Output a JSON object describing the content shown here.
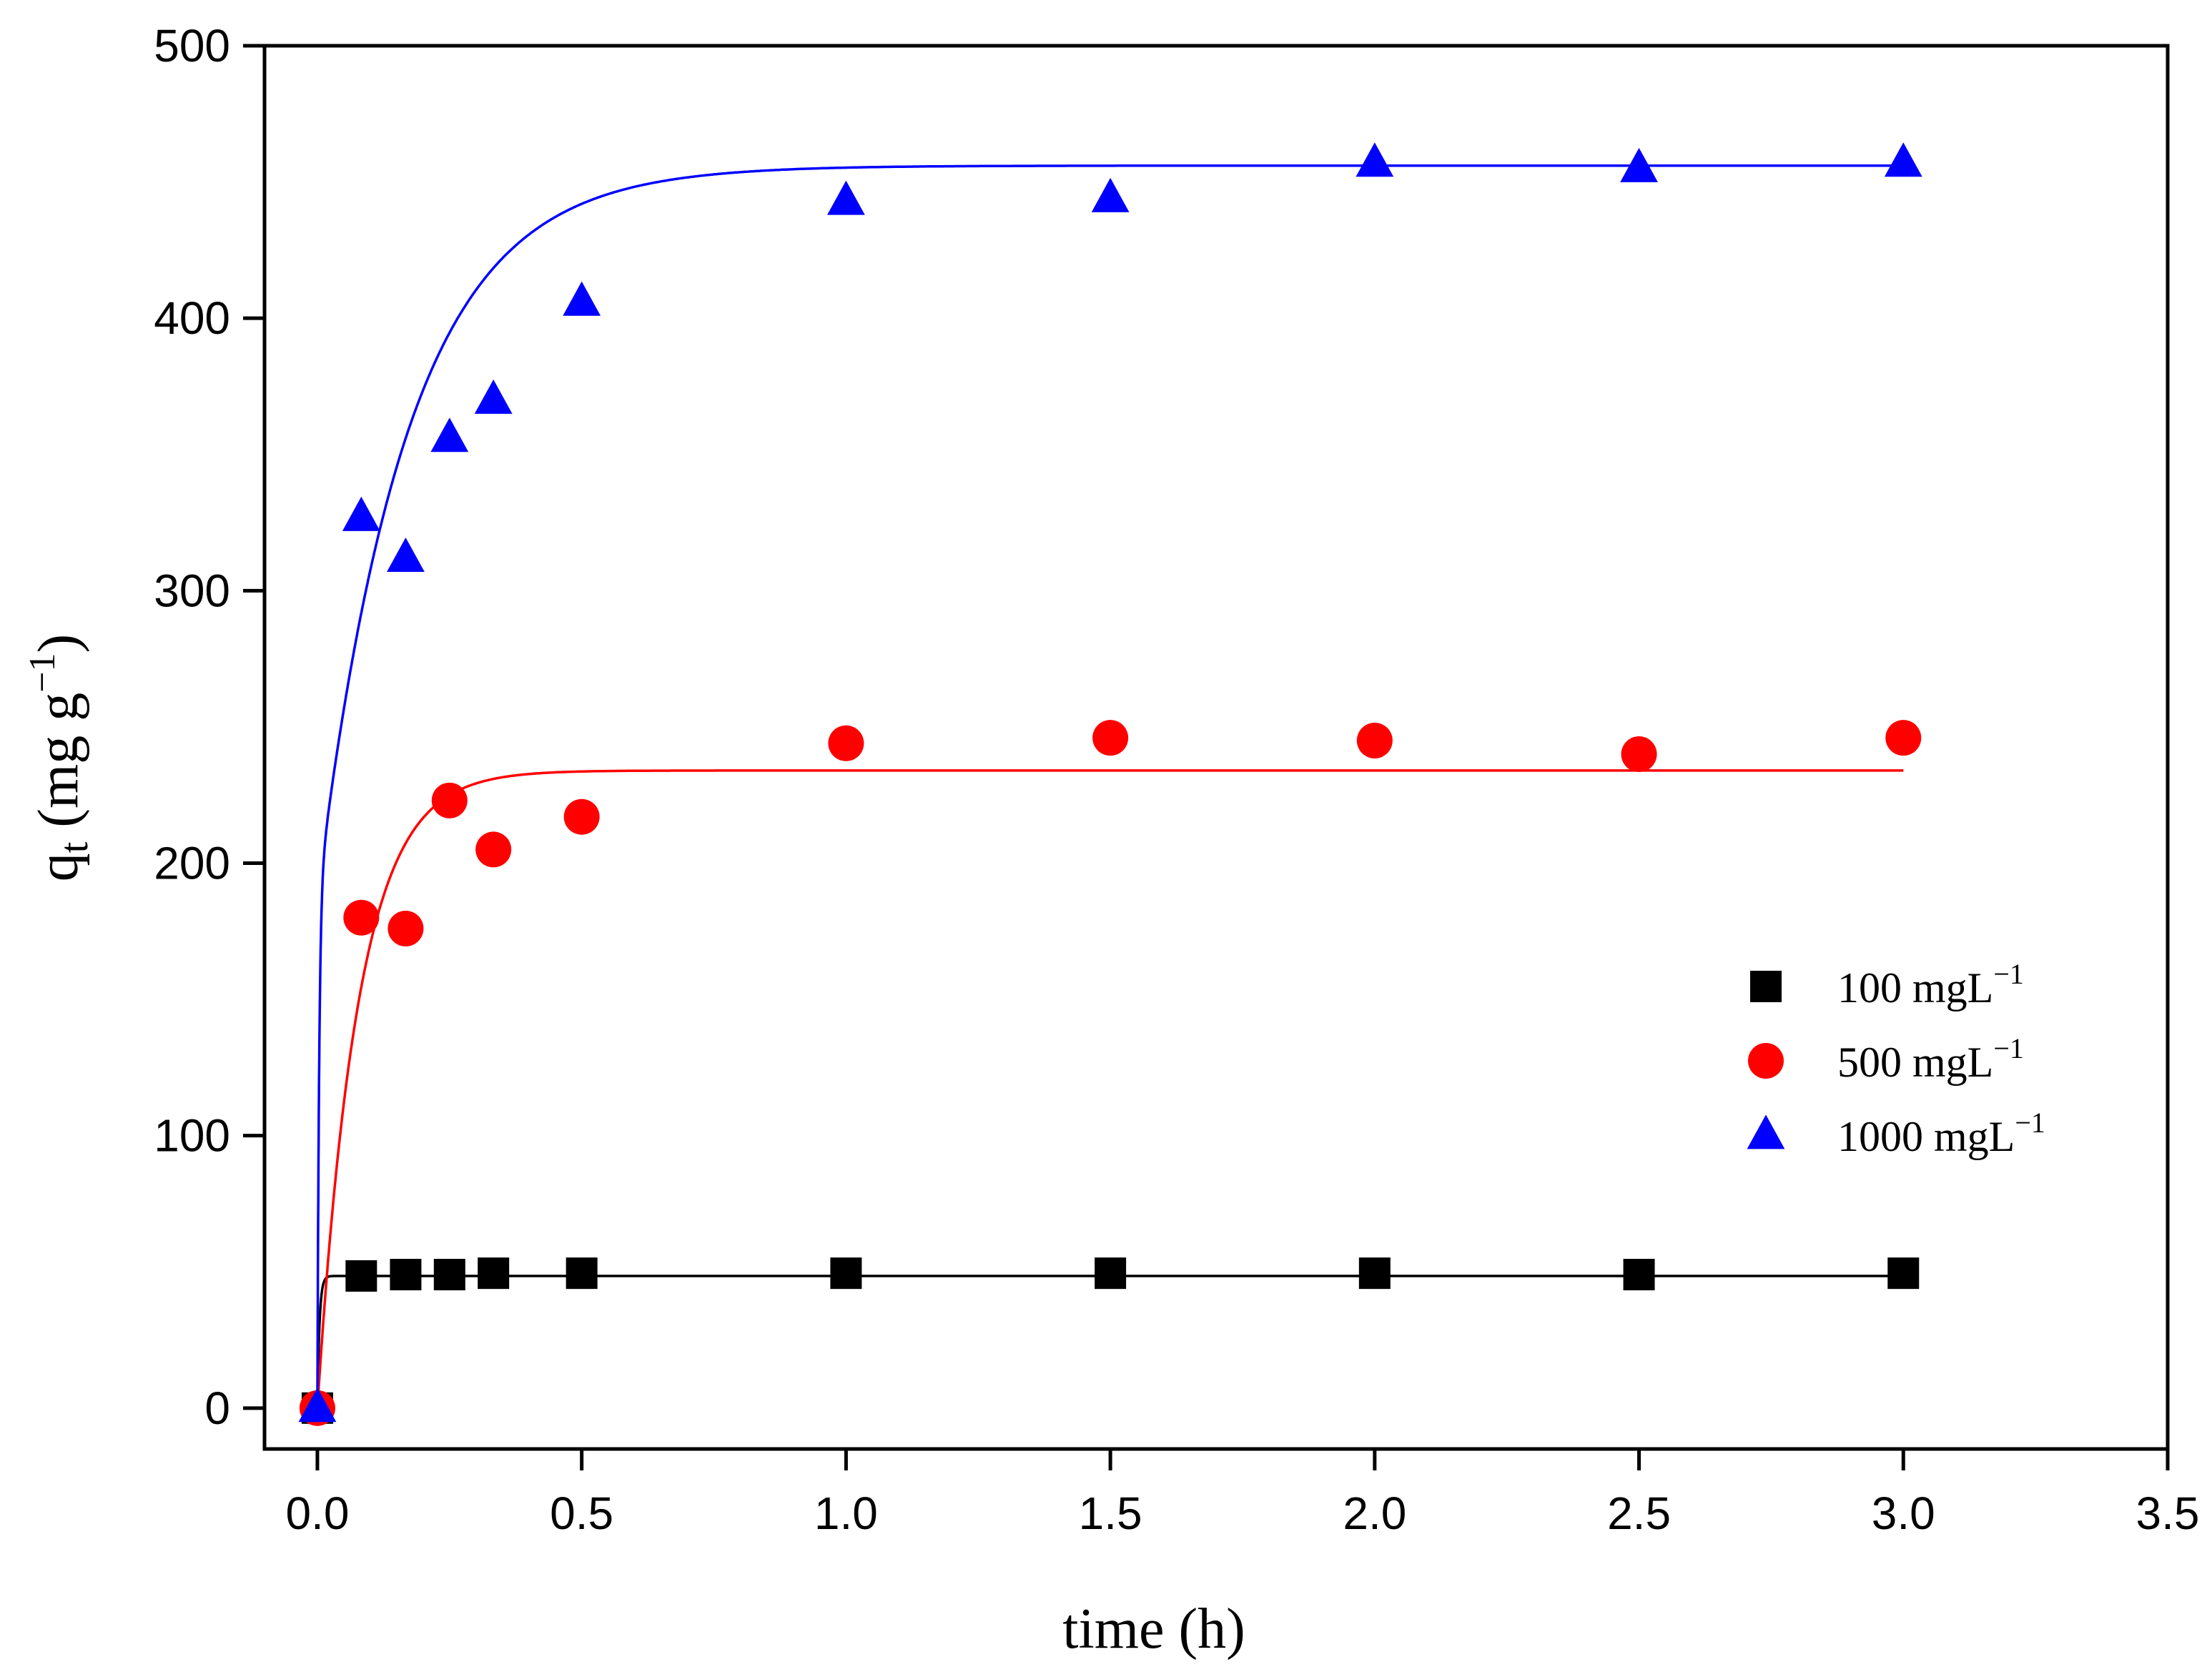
{
  "chart_data": {
    "type": "scatter",
    "xlabel": "time (h)",
    "ylabel": {
      "base": "q",
      "sub": "t",
      "unit_open": " (mg g",
      "unit_sup": "−1",
      "unit_close": ")"
    },
    "xlim": [
      -0.1,
      3.5
    ],
    "ylim": [
      -15,
      500
    ],
    "xticks": [
      "0.0",
      "0.5",
      "1.0",
      "1.5",
      "2.0",
      "2.5",
      "3.0",
      "3.5"
    ],
    "xtick_values": [
      0.0,
      0.5,
      1.0,
      1.5,
      2.0,
      2.5,
      3.0,
      3.5
    ],
    "yticks": [
      "0",
      "100",
      "200",
      "300",
      "400",
      "500"
    ],
    "ytick_values": [
      0,
      100,
      200,
      300,
      400,
      500
    ],
    "legend_position": "center-right",
    "series": [
      {
        "name": "100 mgL",
        "name_sup": "−1",
        "marker": "square",
        "color": "#000000",
        "x": [
          0,
          0.083,
          0.167,
          0.25,
          0.333,
          0.5,
          1.0,
          1.5,
          2.0,
          2.5,
          3.0
        ],
        "y": [
          0,
          48.5,
          49,
          49,
          49.5,
          49.5,
          49.5,
          49.5,
          49.5,
          49,
          49.5
        ],
        "fit": {
          "model": "pseudo-first-order",
          "qe": 48.5,
          "k": 250
        }
      },
      {
        "name": "500  mgL",
        "name_sup": "−1",
        "marker": "circle",
        "color": "#ff0000",
        "x": [
          0,
          0.083,
          0.167,
          0.25,
          0.333,
          0.5,
          1.0,
          1.5,
          2.0,
          2.5,
          3.0
        ],
        "y": [
          0,
          180,
          176,
          223,
          205,
          217,
          244,
          246,
          245,
          240,
          246
        ],
        "fit": {
          "model": "pseudo-first-order",
          "qe": 234,
          "k": 13
        }
      },
      {
        "name": "1000  mgL",
        "name_sup": "−1",
        "marker": "triangle",
        "color": "#0000ff",
        "x": [
          0,
          0.083,
          0.167,
          0.25,
          0.333,
          0.5,
          1.0,
          1.5,
          2.0,
          2.5,
          3.0
        ],
        "y": [
          0,
          327,
          312,
          356,
          370,
          406,
          443,
          444,
          457,
          455,
          457
        ],
        "fit": {
          "model": "two-stage",
          "qe": 456,
          "q1": 188,
          "k1": 300,
          "k2": 5.9
        }
      }
    ]
  }
}
